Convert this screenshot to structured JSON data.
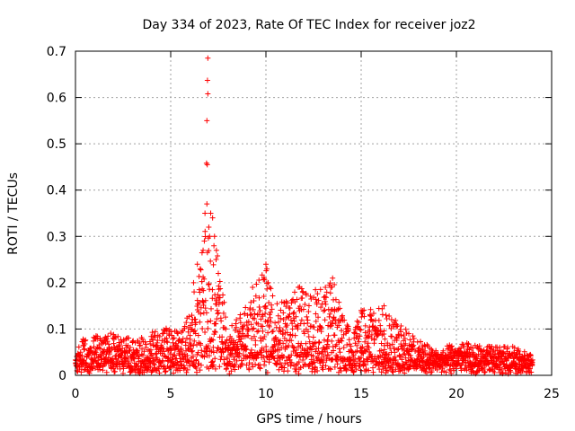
{
  "chart_data": {
    "type": "scatter",
    "title": "Day 334 of 2023, Rate Of TEC Index for receiver joz2",
    "xlabel": "GPS time / hours",
    "ylabel": "ROTI / TECUs",
    "xlim": [
      0,
      25
    ],
    "ylim": [
      0,
      0.7
    ],
    "xticks": [
      0,
      5,
      10,
      15,
      20,
      25
    ],
    "xtick_labels": [
      "0",
      "5",
      "10",
      "15",
      "20",
      "25"
    ],
    "yticks": [
      0,
      0.1,
      0.2,
      0.3,
      0.4,
      0.5,
      0.6,
      0.7
    ],
    "ytick_labels": [
      "0",
      "0.1",
      "0.2",
      "0.3",
      "0.4",
      "0.5",
      "0.6",
      "0.7"
    ],
    "grid": true,
    "marker": "+",
    "color": "#ff0000",
    "series": [
      {
        "name": "ROTI",
        "x_range": [
          0,
          24
        ],
        "envelope": [
          {
            "x": 0.0,
            "base": 0.02,
            "peak": 0.04
          },
          {
            "x": 0.4,
            "base": 0.02,
            "peak": 0.08
          },
          {
            "x": 2.0,
            "base": 0.02,
            "peak": 0.09
          },
          {
            "x": 3.0,
            "base": 0.02,
            "peak": 0.075
          },
          {
            "x": 4.7,
            "base": 0.02,
            "peak": 0.1
          },
          {
            "x": 5.5,
            "base": 0.025,
            "peak": 0.09
          },
          {
            "x": 6.0,
            "base": 0.04,
            "peak": 0.14
          },
          {
            "x": 6.5,
            "base": 0.05,
            "peak": 0.24
          },
          {
            "x": 6.9,
            "base": 0.06,
            "peak": 0.37
          },
          {
            "x": 7.3,
            "base": 0.05,
            "peak": 0.3
          },
          {
            "x": 8.0,
            "base": 0.04,
            "peak": 0.1
          },
          {
            "x": 9.0,
            "base": 0.04,
            "peak": 0.15
          },
          {
            "x": 10.0,
            "base": 0.05,
            "peak": 0.24
          },
          {
            "x": 10.6,
            "base": 0.04,
            "peak": 0.15
          },
          {
            "x": 11.7,
            "base": 0.04,
            "peak": 0.19
          },
          {
            "x": 12.5,
            "base": 0.04,
            "peak": 0.17
          },
          {
            "x": 13.5,
            "base": 0.04,
            "peak": 0.21
          },
          {
            "x": 14.5,
            "base": 0.03,
            "peak": 0.08
          },
          {
            "x": 15.0,
            "base": 0.03,
            "peak": 0.14
          },
          {
            "x": 16.2,
            "base": 0.03,
            "peak": 0.15
          },
          {
            "x": 17.5,
            "base": 0.025,
            "peak": 0.09
          },
          {
            "x": 19.0,
            "base": 0.025,
            "peak": 0.05
          },
          {
            "x": 20.0,
            "base": 0.025,
            "peak": 0.07
          },
          {
            "x": 22.0,
            "base": 0.02,
            "peak": 0.06
          },
          {
            "x": 23.0,
            "base": 0.02,
            "peak": 0.06
          },
          {
            "x": 24.0,
            "base": 0.02,
            "peak": 0.04
          }
        ],
        "notable_points": [
          {
            "x": 6.95,
            "y": 0.685
          },
          {
            "x": 6.93,
            "y": 0.637
          },
          {
            "x": 6.95,
            "y": 0.608
          },
          {
            "x": 6.9,
            "y": 0.55
          },
          {
            "x": 6.88,
            "y": 0.458
          },
          {
            "x": 6.92,
            "y": 0.455
          },
          {
            "x": 6.9,
            "y": 0.37
          },
          {
            "x": 6.8,
            "y": 0.35
          },
          {
            "x": 7.1,
            "y": 0.35
          },
          {
            "x": 7.2,
            "y": 0.34
          },
          {
            "x": 7.0,
            "y": 0.32
          },
          {
            "x": 7.3,
            "y": 0.3
          },
          {
            "x": 6.7,
            "y": 0.27
          },
          {
            "x": 7.4,
            "y": 0.27
          },
          {
            "x": 6.4,
            "y": 0.24
          },
          {
            "x": 6.55,
            "y": 0.23
          },
          {
            "x": 7.5,
            "y": 0.22
          },
          {
            "x": 6.2,
            "y": 0.2
          },
          {
            "x": 10.0,
            "y": 0.24
          },
          {
            "x": 10.05,
            "y": 0.23
          },
          {
            "x": 9.9,
            "y": 0.21
          },
          {
            "x": 10.2,
            "y": 0.19
          },
          {
            "x": 9.3,
            "y": 0.19
          },
          {
            "x": 11.7,
            "y": 0.19
          },
          {
            "x": 12.6,
            "y": 0.185
          },
          {
            "x": 13.5,
            "y": 0.21
          },
          {
            "x": 13.4,
            "y": 0.19
          },
          {
            "x": 13.1,
            "y": 0.17
          },
          {
            "x": 15.0,
            "y": 0.14
          },
          {
            "x": 16.2,
            "y": 0.15
          },
          {
            "x": 16.3,
            "y": 0.13
          },
          {
            "x": 17.5,
            "y": 0.09
          },
          {
            "x": 4.7,
            "y": 0.095
          },
          {
            "x": 2.0,
            "y": 0.088
          },
          {
            "x": 0.4,
            "y": 0.078
          },
          {
            "x": 3.0,
            "y": 0.073
          }
        ]
      }
    ]
  }
}
